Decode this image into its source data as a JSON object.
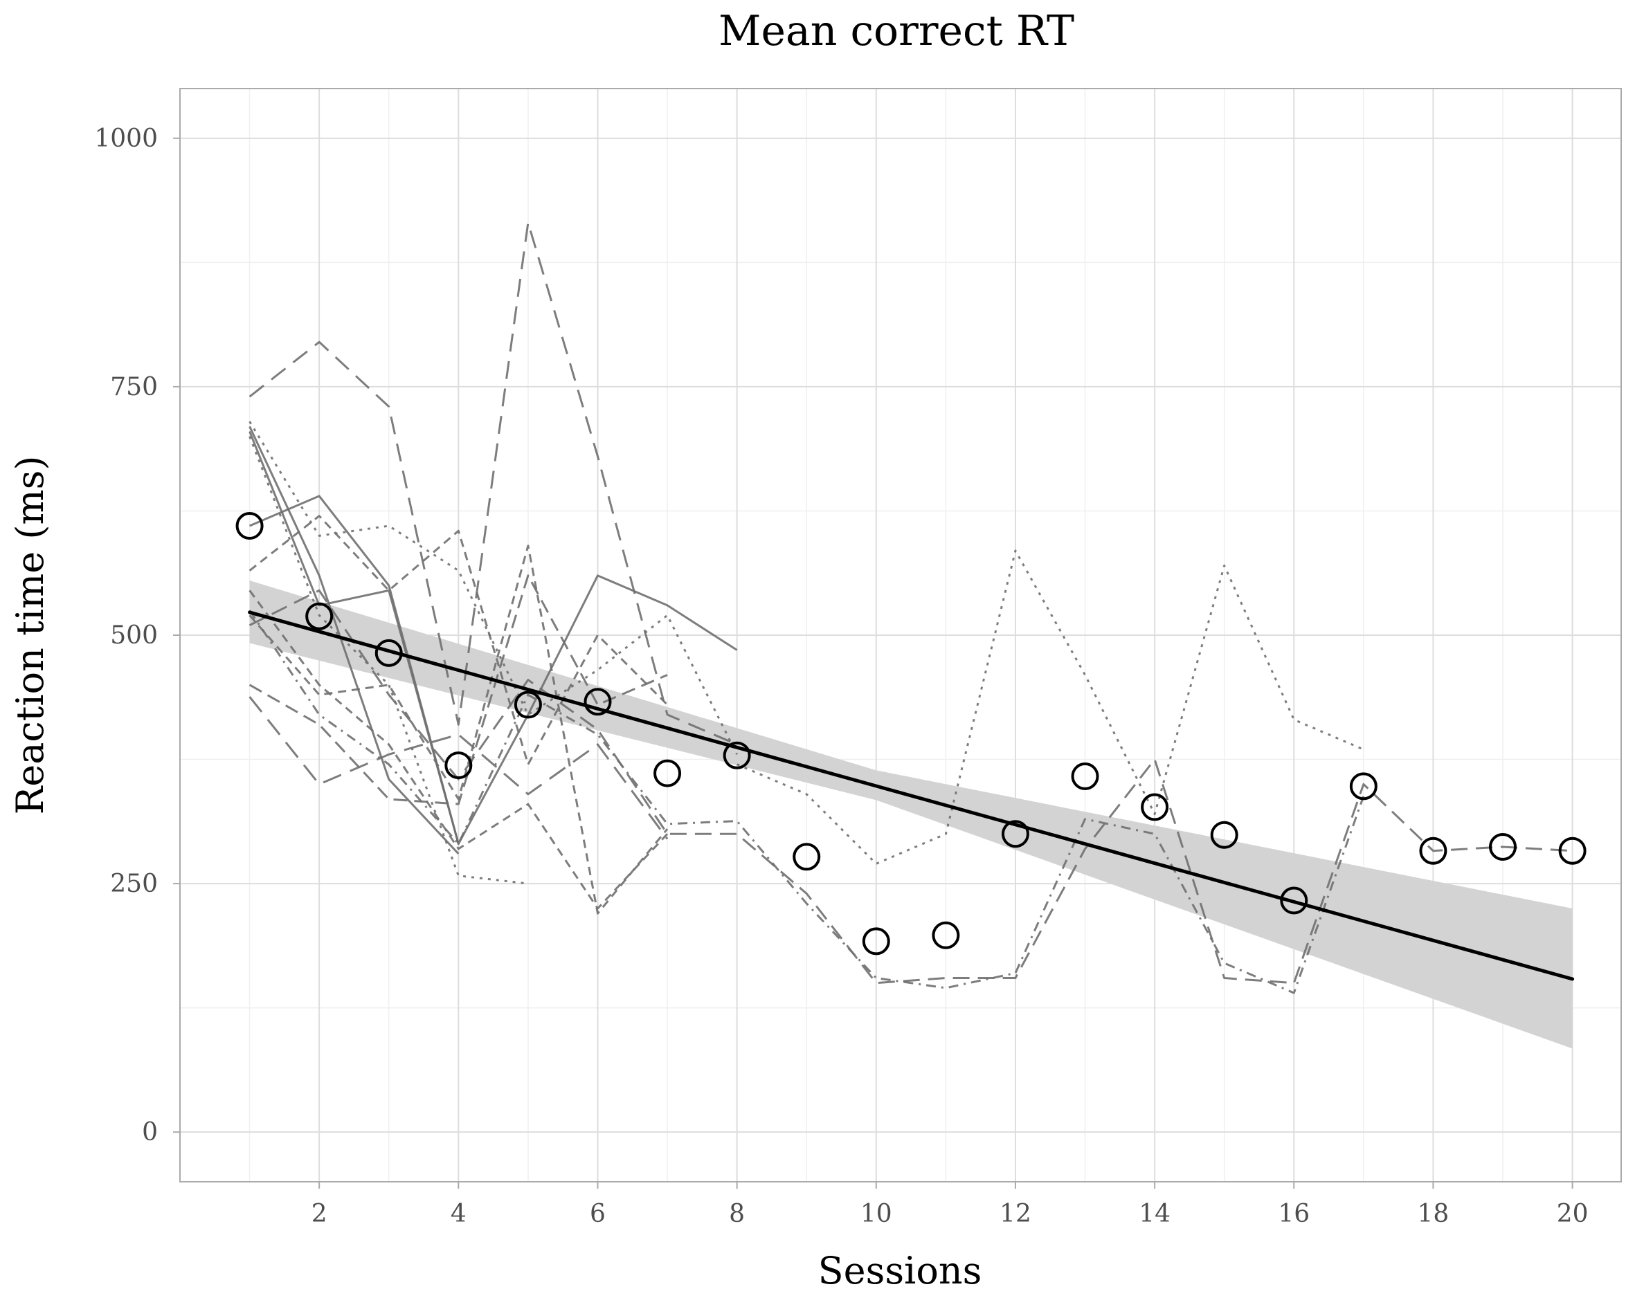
{
  "chart_data": {
    "type": "line",
    "title": "Mean correct RT",
    "xlabel": "Sessions",
    "ylabel": "Reaction time (ms)",
    "xlim": [
      0,
      20.7
    ],
    "ylim": [
      -50,
      1050
    ],
    "x_ticks": [
      2,
      4,
      6,
      8,
      10,
      12,
      14,
      16,
      18,
      20
    ],
    "x_tick_labels": [
      "2",
      "4",
      "6",
      "8",
      "10",
      "12",
      "14",
      "16",
      "18",
      "20"
    ],
    "y_ticks": [
      0,
      250,
      500,
      750,
      1000
    ],
    "y_tick_labels": [
      "0",
      "250",
      "500",
      "750",
      "1000"
    ],
    "grid": true,
    "legend": "none",
    "colors": {
      "mean_points": "#000000",
      "fit_line": "#000000",
      "ribbon": "#d3d3d3",
      "individual_lines": "#6f6f6f",
      "grid": "#dddddd",
      "panel_border": "#aaaaaa"
    },
    "mean_points": {
      "x": [
        1,
        2,
        3,
        4,
        5,
        6,
        7,
        8,
        9,
        10,
        11,
        12,
        13,
        14,
        15,
        16,
        17,
        18,
        19,
        20
      ],
      "y": [
        610,
        519,
        482,
        369,
        430,
        433,
        361,
        379,
        277,
        192,
        198,
        300,
        358,
        327,
        299,
        233,
        348,
        283,
        287,
        283
      ]
    },
    "fit_line": {
      "x": [
        1,
        20
      ],
      "y": [
        523,
        154
      ]
    },
    "ribbon": {
      "x": [
        1,
        10,
        20
      ],
      "lower": [
        492,
        334,
        84
      ],
      "upper": [
        555,
        364,
        225
      ]
    },
    "individual_series": [
      {
        "dash": "26,14",
        "x": [
          1,
          2,
          3,
          4,
          5,
          6,
          7,
          8
        ],
        "y": [
          740,
          795,
          730,
          410,
          915,
          680,
          420,
          390
        ]
      },
      {
        "dash": "",
        "x": [
          1,
          2,
          3,
          4,
          5,
          6,
          7,
          8
        ],
        "y": [
          610,
          640,
          550,
          290,
          420,
          560,
          530,
          485
        ]
      },
      {
        "dash": "",
        "x": [
          1,
          2,
          3,
          4
        ],
        "y": [
          705,
          530,
          545,
          290
        ]
      },
      {
        "dash": "",
        "x": [
          1,
          2,
          3,
          4
        ],
        "y": [
          710,
          560,
          355,
          280
        ]
      },
      {
        "dash": "4,8",
        "x": [
          1,
          2,
          3,
          4,
          5,
          6,
          7,
          8
        ],
        "y": [
          715,
          600,
          610,
          565,
          420,
          465,
          520,
          380
        ]
      },
      {
        "dash": "4,8",
        "x": [
          1,
          2,
          3,
          4,
          5
        ],
        "y": [
          700,
          520,
          450,
          258,
          250
        ]
      },
      {
        "dash": "12,8",
        "x": [
          1,
          2,
          3,
          4,
          5,
          6,
          7
        ],
        "y": [
          565,
          620,
          545,
          605,
          370,
          500,
          430
        ]
      },
      {
        "dash": "12,8",
        "x": [
          1,
          2,
          3,
          4,
          5,
          6,
          7
        ],
        "y": [
          520,
          440,
          450,
          335,
          590,
          220,
          305
        ]
      },
      {
        "dash": "12,8",
        "x": [
          1,
          2,
          3,
          4,
          5,
          6,
          7
        ],
        "y": [
          545,
          450,
          390,
          285,
          330,
          225,
          300
        ]
      },
      {
        "dash": "28,14",
        "x": [
          1,
          2,
          3,
          4,
          5,
          6,
          7
        ],
        "y": [
          438,
          350,
          380,
          400,
          340,
          390,
          295
        ]
      },
      {
        "dash": "20,10",
        "x": [
          1,
          2,
          3,
          4,
          5,
          6,
          7
        ],
        "y": [
          450,
          410,
          335,
          330,
          560,
          430,
          460
        ]
      },
      {
        "dash": "14,8,3,8",
        "x": [
          1,
          2,
          3,
          4,
          5,
          6,
          7,
          8,
          9,
          10,
          11,
          12,
          13,
          14,
          15,
          16,
          17
        ],
        "y": [
          525,
          420,
          370,
          290,
          440,
          400,
          310,
          313,
          230,
          155,
          145,
          160,
          315,
          300,
          170,
          140,
          338
        ]
      },
      {
        "dash": "24,12",
        "x": [
          1,
          2,
          3,
          4,
          5,
          6,
          7,
          8,
          9,
          10,
          11,
          12,
          13,
          14,
          15,
          16,
          17,
          18,
          19,
          20
        ],
        "y": [
          510,
          545,
          440,
          355,
          455,
          405,
          300,
          300,
          240,
          150,
          155,
          155,
          285,
          375,
          155,
          150,
          350,
          283,
          287,
          283
        ]
      },
      {
        "dash": "4,8",
        "x": [
          8,
          9,
          10,
          11,
          12,
          13,
          14,
          15,
          16,
          17
        ],
        "y": [
          370,
          340,
          270,
          300,
          585,
          460,
          320,
          570,
          415,
          385
        ]
      }
    ]
  }
}
